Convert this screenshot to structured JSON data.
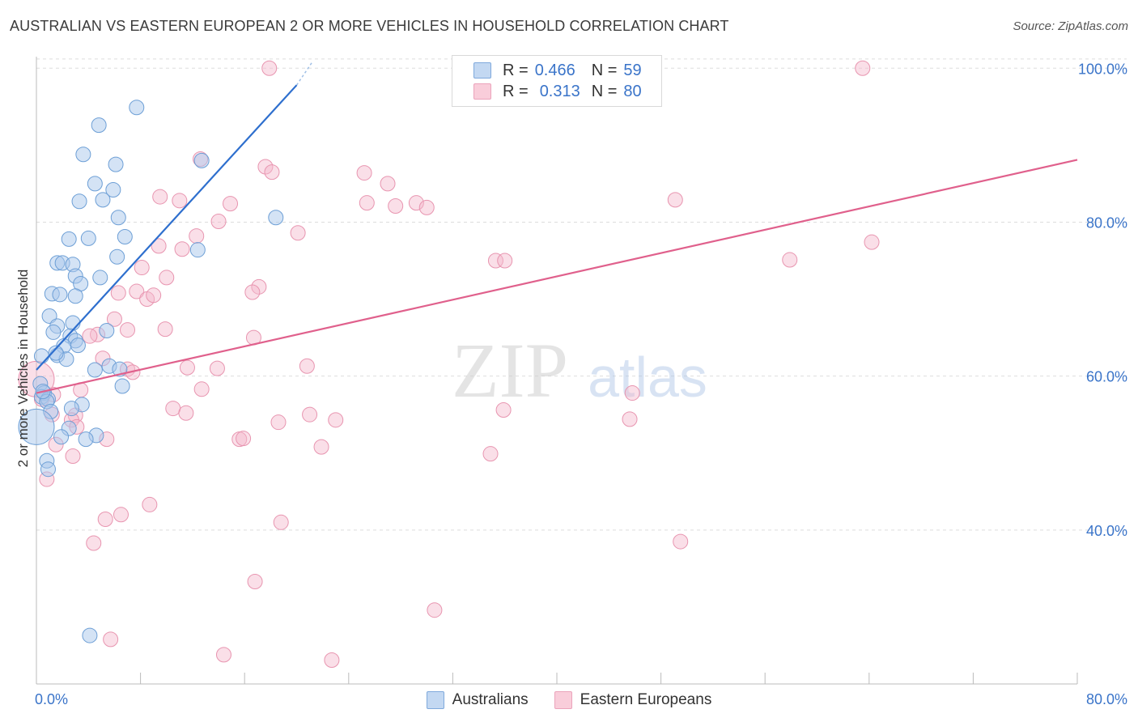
{
  "header": {
    "title": "AUSTRALIAN VS EASTERN EUROPEAN 2 OR MORE VEHICLES IN HOUSEHOLD CORRELATION CHART",
    "source": "Source: ZipAtlas.com"
  },
  "watermark": {
    "zip": "ZIP",
    "atlas": "atlas"
  },
  "legend": {
    "r_label": "R =",
    "n_label": "N =",
    "australians": {
      "r": "0.466",
      "n": "59"
    },
    "eastern": {
      "r": "0.313",
      "n": "80"
    }
  },
  "chart_data": {
    "type": "scatter",
    "title": "AUSTRALIAN VS EASTERN EUROPEAN 2 OR MORE VEHICLES IN HOUSEHOLD CORRELATION CHART",
    "xlabel": "",
    "ylabel": "2 or more Vehicles in Household",
    "xlim": [
      0,
      80
    ],
    "ylim": [
      20,
      101.5
    ],
    "x_tick_labels": [
      "0.0%",
      "80.0%"
    ],
    "y_ticks": [
      {
        "value": 100,
        "label": "100.0%"
      },
      {
        "value": 80,
        "label": "80.0%"
      },
      {
        "value": 60,
        "label": "60.0%"
      },
      {
        "value": 40,
        "label": "40.0%"
      }
    ],
    "colors": {
      "australians_fill": "#a9c8ec",
      "australians_stroke": "#6d9fd6",
      "australians_line": "#2e6fce",
      "eastern_fill": "#f5b8cb",
      "eastern_stroke": "#e895b0",
      "eastern_line": "#e0608c",
      "tick_label": "#3a74c9",
      "grid": "#dddddd"
    },
    "series": [
      {
        "name": "Australians",
        "trend": {
          "x0": 0,
          "y0": 60.8,
          "x1": 20,
          "y1": 97.8,
          "dash_x1": 21.2,
          "dash_y1": 100.8
        },
        "points": [
          [
            7.7,
            94.9
          ],
          [
            4.8,
            92.6
          ],
          [
            3.6,
            88.8
          ],
          [
            12.7,
            88.0
          ],
          [
            6.1,
            87.5
          ],
          [
            4.5,
            85.0
          ],
          [
            5.9,
            84.2
          ],
          [
            3.3,
            82.7
          ],
          [
            5.1,
            82.9
          ],
          [
            6.3,
            80.6
          ],
          [
            18.4,
            80.6
          ],
          [
            2.5,
            77.8
          ],
          [
            4.0,
            77.9
          ],
          [
            6.8,
            78.1
          ],
          [
            6.2,
            75.5
          ],
          [
            12.4,
            76.4
          ],
          [
            1.6,
            74.7
          ],
          [
            2.0,
            74.7
          ],
          [
            2.8,
            74.5
          ],
          [
            3.0,
            73.0
          ],
          [
            4.9,
            72.8
          ],
          [
            3.4,
            72.0
          ],
          [
            1.2,
            70.7
          ],
          [
            1.8,
            70.6
          ],
          [
            3.0,
            70.4
          ],
          [
            1.0,
            67.8
          ],
          [
            2.8,
            66.9
          ],
          [
            1.6,
            66.5
          ],
          [
            1.3,
            65.7
          ],
          [
            5.4,
            65.9
          ],
          [
            2.6,
            65.2
          ],
          [
            3.0,
            64.6
          ],
          [
            2.1,
            63.9
          ],
          [
            1.6,
            62.7
          ],
          [
            0.4,
            62.6
          ],
          [
            2.3,
            62.2
          ],
          [
            5.6,
            61.3
          ],
          [
            4.5,
            60.8
          ],
          [
            6.4,
            60.9
          ],
          [
            6.6,
            58.7
          ],
          [
            0.3,
            59.0
          ],
          [
            0.6,
            57.8
          ],
          [
            0.4,
            57.3
          ],
          [
            0.9,
            57.0
          ],
          [
            0.8,
            56.7
          ],
          [
            3.5,
            56.3
          ],
          [
            2.7,
            55.8
          ],
          [
            1.1,
            55.4
          ],
          [
            2.5,
            53.2
          ],
          [
            1.9,
            52.1
          ],
          [
            4.6,
            52.3
          ],
          [
            3.8,
            51.8
          ],
          [
            0.8,
            49.0
          ],
          [
            0.9,
            47.9
          ],
          [
            4.1,
            26.3
          ],
          [
            0.0,
            53.4
          ],
          [
            0.5,
            58.0
          ],
          [
            1.5,
            63.0
          ],
          [
            3.2,
            64.0
          ]
        ]
      },
      {
        "name": "Eastern Europeans",
        "trend": {
          "x0": 0,
          "y0": 57.8,
          "x1": 80,
          "y1": 88.1
        },
        "points": [
          [
            17.9,
            100.0
          ],
          [
            63.5,
            100.0
          ],
          [
            12.6,
            88.2
          ],
          [
            17.6,
            87.2
          ],
          [
            18.1,
            86.5
          ],
          [
            25.2,
            86.4
          ],
          [
            27.0,
            85.0
          ],
          [
            9.5,
            83.3
          ],
          [
            11.0,
            82.8
          ],
          [
            14.9,
            82.4
          ],
          [
            25.4,
            82.5
          ],
          [
            29.2,
            82.5
          ],
          [
            30.0,
            81.9
          ],
          [
            27.6,
            82.1
          ],
          [
            49.1,
            82.9
          ],
          [
            14.0,
            80.1
          ],
          [
            20.1,
            78.6
          ],
          [
            12.3,
            78.2
          ],
          [
            9.4,
            76.9
          ],
          [
            11.2,
            76.5
          ],
          [
            35.3,
            75.0
          ],
          [
            57.9,
            75.1
          ],
          [
            64.2,
            77.4
          ],
          [
            8.1,
            74.1
          ],
          [
            10.0,
            72.8
          ],
          [
            17.1,
            71.6
          ],
          [
            16.6,
            70.9
          ],
          [
            7.7,
            71.0
          ],
          [
            6.3,
            70.8
          ],
          [
            8.5,
            70.0
          ],
          [
            6.0,
            67.4
          ],
          [
            9.9,
            66.1
          ],
          [
            7.0,
            66.0
          ],
          [
            4.7,
            65.4
          ],
          [
            4.1,
            65.2
          ],
          [
            16.7,
            65.0
          ],
          [
            5.1,
            62.3
          ],
          [
            11.6,
            61.1
          ],
          [
            13.9,
            61.0
          ],
          [
            20.8,
            61.3
          ],
          [
            7.0,
            60.9
          ],
          [
            7.4,
            60.5
          ],
          [
            12.7,
            58.3
          ],
          [
            3.4,
            58.2
          ],
          [
            45.8,
            57.8
          ],
          [
            1.3,
            57.6
          ],
          [
            0.4,
            57.0
          ],
          [
            10.5,
            55.8
          ],
          [
            11.5,
            55.2
          ],
          [
            1.2,
            55.0
          ],
          [
            3.0,
            54.9
          ],
          [
            2.7,
            54.3
          ],
          [
            18.6,
            54.0
          ],
          [
            23.0,
            54.3
          ],
          [
            35.9,
            55.6
          ],
          [
            45.6,
            54.4
          ],
          [
            3.1,
            53.4
          ],
          [
            15.6,
            51.8
          ],
          [
            15.9,
            51.9
          ],
          [
            21.9,
            50.8
          ],
          [
            1.5,
            51.1
          ],
          [
            5.4,
            51.8
          ],
          [
            2.8,
            49.6
          ],
          [
            34.9,
            49.9
          ],
          [
            0.8,
            46.6
          ],
          [
            8.7,
            43.3
          ],
          [
            6.5,
            42.0
          ],
          [
            5.3,
            41.4
          ],
          [
            18.8,
            41.0
          ],
          [
            4.4,
            38.3
          ],
          [
            49.5,
            38.5
          ],
          [
            16.8,
            33.3
          ],
          [
            30.6,
            29.6
          ],
          [
            14.4,
            23.8
          ],
          [
            5.7,
            25.8
          ],
          [
            22.7,
            23.1
          ],
          [
            0.0,
            59.6
          ],
          [
            9.0,
            70.5
          ],
          [
            36.0,
            75.0
          ],
          [
            21.0,
            55.0
          ]
        ]
      }
    ]
  },
  "bottom_legend": {
    "australians": "Australians",
    "eastern": "Eastern Europeans"
  }
}
